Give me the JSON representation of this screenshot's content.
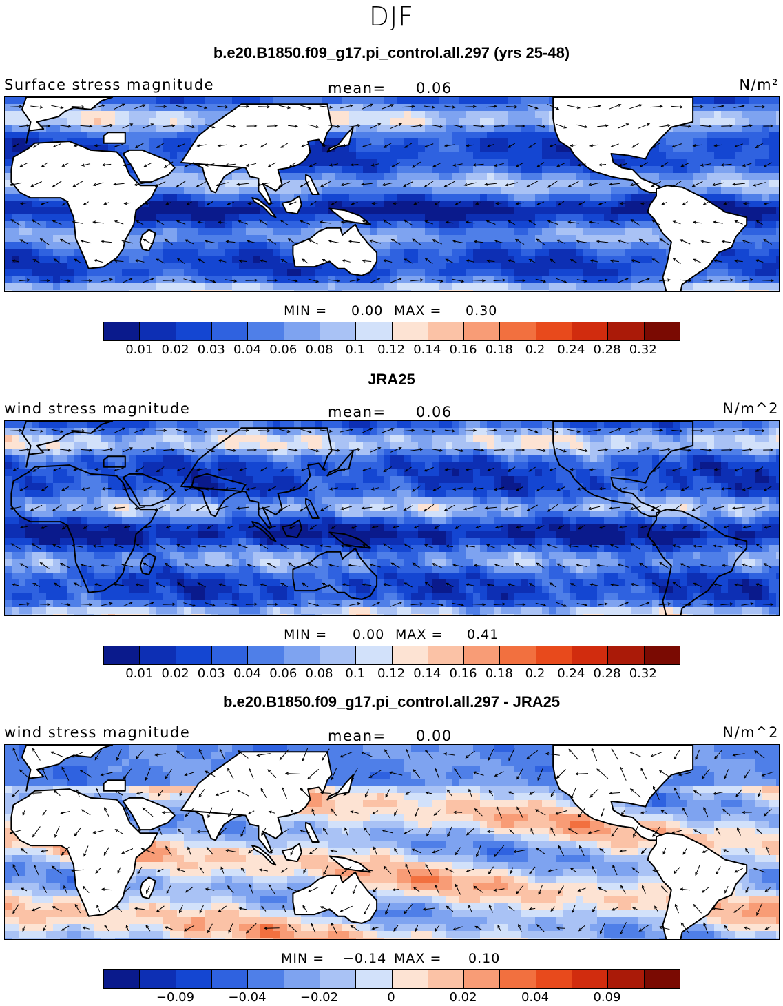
{
  "season": "DJF",
  "panels": [
    {
      "title": "b.e20.B1850.f09_g17.pi_control.all.297 (yrs 25-48)",
      "variable": "Surface stress magnitude",
      "mean_label": "mean=",
      "mean_value": "0.06",
      "units": "N/m²",
      "min_label": "MIN =",
      "min_value": "0.00",
      "max_label": "MAX =",
      "max_value": "0.30",
      "field": "model",
      "colorbar": {
        "colors": [
          "#0a1a8c",
          "#0d2fb4",
          "#1446d2",
          "#2f62e0",
          "#4f7fe8",
          "#7ea3f0",
          "#a9c2f5",
          "#d2e1fa",
          "#fde3d3",
          "#fbc2a6",
          "#f89c76",
          "#f2703f",
          "#e84a1c",
          "#d12c0e",
          "#aa1a08",
          "#7a0a02"
        ],
        "tick_labels": [
          "0.01",
          "0.02",
          "0.03",
          "0.04",
          "0.06",
          "0.08",
          "0.1",
          "0.12",
          "0.14",
          "0.16",
          "0.18",
          "0.2",
          "0.24",
          "0.28",
          "0.32"
        ]
      }
    },
    {
      "title": "JRA25",
      "variable": "wind stress magnitude",
      "mean_label": "mean=",
      "mean_value": "0.06",
      "units": "N/m^2",
      "min_label": "MIN =",
      "min_value": "0.00",
      "max_label": "MAX =",
      "max_value": "0.41",
      "field": "obs",
      "colorbar": {
        "colors": [
          "#0a1a8c",
          "#0d2fb4",
          "#1446d2",
          "#2f62e0",
          "#4f7fe8",
          "#7ea3f0",
          "#a9c2f5",
          "#d2e1fa",
          "#fde3d3",
          "#fbc2a6",
          "#f89c76",
          "#f2703f",
          "#e84a1c",
          "#d12c0e",
          "#aa1a08",
          "#7a0a02"
        ],
        "tick_labels": [
          "0.01",
          "0.02",
          "0.03",
          "0.04",
          "0.06",
          "0.08",
          "0.1",
          "0.12",
          "0.14",
          "0.16",
          "0.18",
          "0.2",
          "0.24",
          "0.28",
          "0.32"
        ]
      }
    },
    {
      "title": "b.e20.B1850.f09_g17.pi_control.all.297 - JRA25",
      "variable": "wind stress magnitude",
      "mean_label": "mean=",
      "mean_value": "0.00",
      "units": "N/m^2",
      "min_label": "MIN =",
      "min_value": "−0.14",
      "max_label": "MAX =",
      "max_value": "0.10",
      "field": "diff",
      "colorbar": {
        "colors": [
          "#0a1a8c",
          "#0d2fb4",
          "#1446d2",
          "#2f62e0",
          "#4f7fe8",
          "#7ea3f0",
          "#a9c2f5",
          "#d2e1fa",
          "#fde3d3",
          "#fbc2a6",
          "#f89c76",
          "#f2703f",
          "#e84a1c",
          "#d12c0e",
          "#aa1a08",
          "#7a0a02"
        ],
        "tick_labels": [
          "",
          "−0.09",
          "",
          "−0.04",
          "",
          "−0.02",
          "",
          "0",
          "",
          "0.02",
          "",
          "0.04",
          "",
          "0.09",
          ""
        ]
      }
    }
  ]
}
